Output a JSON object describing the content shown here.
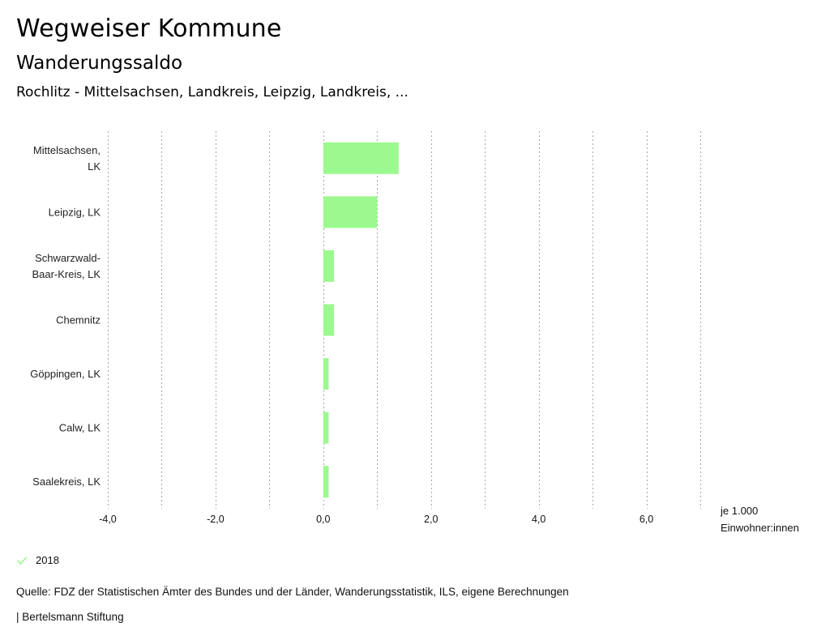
{
  "header": {
    "title": "Wegweiser Kommune",
    "subtitle": "Wanderungssaldo",
    "region": "Rochlitz - Mittelsachsen, Landkreis, Leipzig, Landkreis, ..."
  },
  "chart_data": {
    "type": "bar",
    "orientation": "horizontal",
    "categories": [
      [
        "Mittelsachsen,",
        "LK"
      ],
      [
        "Leipzig, LK"
      ],
      [
        "Schwarzwald-",
        "Baar-Kreis, LK"
      ],
      [
        "Chemnitz"
      ],
      [
        "Göppingen, LK"
      ],
      [
        "Calw, LK"
      ],
      [
        "Saalekreis, LK"
      ]
    ],
    "series": [
      {
        "name": "2018",
        "values": [
          1.4,
          1.0,
          0.2,
          0.2,
          0.1,
          0.1,
          0.1
        ]
      }
    ],
    "xlim": [
      -4,
      7
    ],
    "ticks": [
      "-4,0",
      "-2,0",
      "0,0",
      "2,0",
      "4,0",
      "6,0"
    ],
    "tick_values": [
      -4,
      -2,
      0,
      2,
      4,
      6
    ],
    "grid_values": [
      -4,
      -3,
      -2,
      -1,
      0,
      1,
      2,
      3,
      4,
      5,
      6,
      7
    ],
    "unit_label": [
      "je 1.000",
      "Einwohner:innen"
    ],
    "bar_color": "#9cf98f",
    "grid_color": "#a8a8a8"
  },
  "legend": {
    "label": "2018",
    "color": "#9cf98f"
  },
  "footer": {
    "source": "Quelle: FDZ der Statistischen Ämter des Bundes und der Länder, Wanderungsstatistik, ILS, eigene Berechnungen",
    "credit": "| Bertelsmann Stiftung"
  }
}
